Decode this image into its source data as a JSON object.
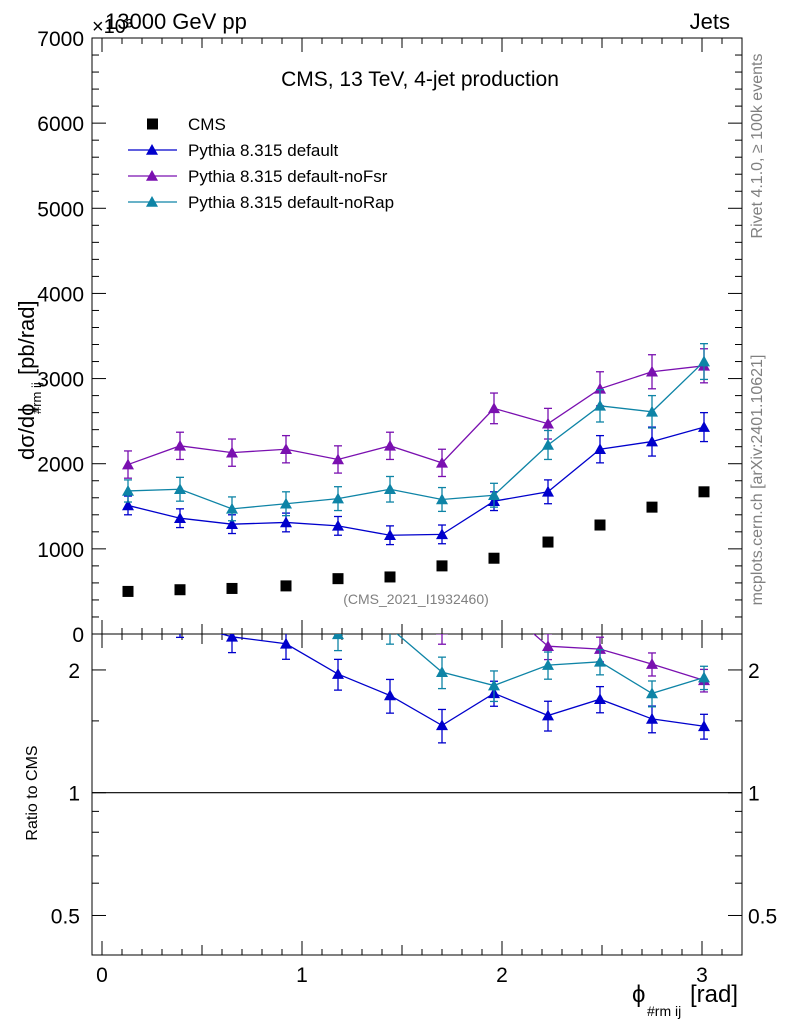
{
  "header": {
    "left": "13000 GeV pp",
    "right": "Jets",
    "exponent": "×10³"
  },
  "side_labels": {
    "rivet": "Rivet 4.1.0, ≥ 100k events",
    "mcplots": "mcplots.cern.ch [arXiv:2401.10621]"
  },
  "chart_data": {
    "type": "scatter",
    "title": "CMS, 13 TeV, 4-jet production",
    "watermark": "(CMS_2021_I1932460)",
    "xlabel": "ϕ",
    "xlabel_sub": "#rm ij",
    "xlabel_unit": "[rad]",
    "ylabel": "dσ/dϕ",
    "ylabel_sub": "#rm ij",
    "ylabel_unit": "[pb/rad]",
    "xlim": [
      -0.05,
      3.2
    ],
    "ylim": [
      0,
      7000
    ],
    "ytick_labels": [
      "0",
      "1000",
      "2000",
      "3000",
      "4000",
      "5000",
      "6000",
      "7000"
    ],
    "ytick_values": [
      0,
      1000,
      2000,
      3000,
      4000,
      5000,
      6000,
      7000
    ],
    "xtick_labels": [
      "0",
      "1",
      "2",
      "3"
    ],
    "xtick_values": [
      0,
      1,
      2,
      3
    ],
    "x": [
      0.13,
      0.39,
      0.65,
      0.92,
      1.18,
      1.44,
      1.7,
      1.96,
      2.23,
      2.49,
      2.75,
      3.01
    ],
    "series": [
      {
        "name": "CMS",
        "color": "#000000",
        "marker": "square",
        "values": [
          500,
          520,
          535,
          565,
          650,
          670,
          800,
          890,
          1080,
          1280,
          1490,
          1670
        ],
        "errors": [
          0,
          0,
          0,
          0,
          0,
          0,
          0,
          0,
          0,
          0,
          0,
          0
        ]
      },
      {
        "name": "Pythia 8.315 default",
        "color": "#0000cc",
        "marker": "triangle",
        "values": [
          1510,
          1360,
          1290,
          1310,
          1270,
          1160,
          1170,
          1560,
          1670,
          2170,
          2260,
          2430
        ],
        "errors": [
          110,
          110,
          110,
          110,
          110,
          110,
          110,
          110,
          140,
          160,
          170,
          170
        ]
      },
      {
        "name": "Pythia 8.315 default-noFsr",
        "color": "#7a10b0",
        "marker": "triangle",
        "values": [
          1990,
          2210,
          2130,
          2170,
          2050,
          2210,
          2010,
          2650,
          2470,
          2880,
          3080,
          3150
        ],
        "errors": [
          160,
          160,
          160,
          160,
          160,
          160,
          160,
          180,
          180,
          200,
          200,
          200
        ]
      },
      {
        "name": "Pythia 8.315 default-noRap",
        "color": "#0e84a6",
        "marker": "triangle",
        "values": [
          1680,
          1700,
          1470,
          1530,
          1590,
          1700,
          1580,
          1630,
          2220,
          2680,
          2610,
          3200
        ],
        "errors": [
          130,
          140,
          140,
          140,
          140,
          150,
          140,
          140,
          170,
          190,
          190,
          210
        ]
      }
    ],
    "ratio": {
      "ylabel": "Ratio to CMS",
      "ylim": [
        0.4,
        2.45
      ],
      "log_scale": true,
      "ytick_labels": [
        "0.5",
        "1",
        "2"
      ],
      "ytick_values": [
        0.5,
        1,
        2
      ],
      "reference": 1
    }
  }
}
